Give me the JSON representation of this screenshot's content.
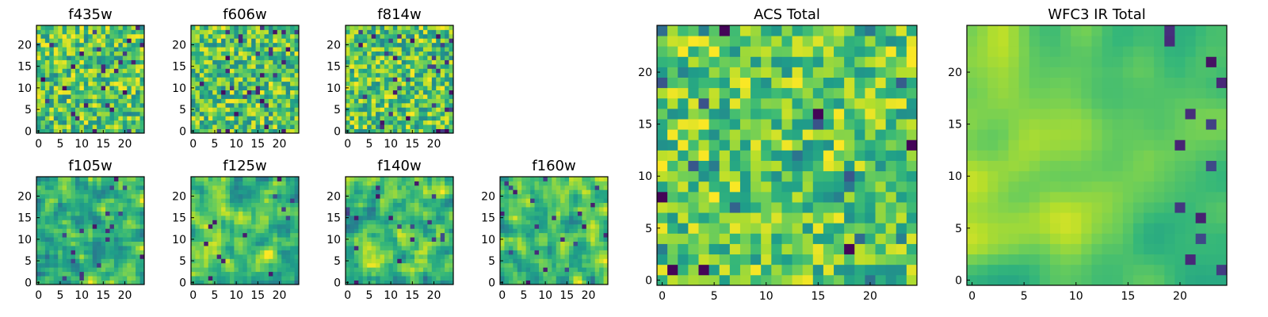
{
  "chart_data": {
    "type": "heatmap",
    "colormap": "viridis",
    "panels": [
      {
        "title": "f435w",
        "xticks": [
          "0",
          "5",
          "10",
          "15",
          "20"
        ],
        "yticks": [
          "0",
          "5",
          "10",
          "15",
          "20"
        ],
        "grid_size": 25,
        "texture": "noise",
        "seed": 11
      },
      {
        "title": "f606w",
        "xticks": [
          "0",
          "5",
          "10",
          "15",
          "20"
        ],
        "yticks": [
          "0",
          "5",
          "10",
          "15",
          "20"
        ],
        "grid_size": 25,
        "texture": "noise",
        "seed": 23
      },
      {
        "title": "f814w",
        "xticks": [
          "0",
          "5",
          "10",
          "15",
          "20"
        ],
        "yticks": [
          "0",
          "5",
          "10",
          "15",
          "20"
        ],
        "grid_size": 25,
        "texture": "noise",
        "seed": 37
      },
      {
        "title": "f105w",
        "xticks": [
          "0",
          "5",
          "10",
          "15",
          "20"
        ],
        "yticks": [
          "0",
          "5",
          "10",
          "15",
          "20"
        ],
        "grid_size": 25,
        "texture": "smooth",
        "seed": 41
      },
      {
        "title": "f125w",
        "xticks": [
          "0",
          "5",
          "10",
          "15",
          "20"
        ],
        "yticks": [
          "0",
          "5",
          "10",
          "15",
          "20"
        ],
        "grid_size": 25,
        "texture": "smooth",
        "seed": 53
      },
      {
        "title": "f140w",
        "xticks": [
          "0",
          "5",
          "10",
          "15",
          "20"
        ],
        "yticks": [
          "0",
          "5",
          "10",
          "15",
          "20"
        ],
        "grid_size": 25,
        "texture": "smooth",
        "seed": 67
      },
      {
        "title": "f160w",
        "xticks": [
          "0",
          "5",
          "10",
          "15",
          "20"
        ],
        "yticks": [
          "0",
          "5",
          "10",
          "15",
          "20"
        ],
        "grid_size": 25,
        "texture": "smooth",
        "seed": 79
      },
      {
        "title": "ACS Total",
        "xticks": [
          "0",
          "5",
          "10",
          "15",
          "20"
        ],
        "yticks": [
          "0",
          "5",
          "10",
          "15",
          "20"
        ],
        "grid_size": 25,
        "texture": "acs",
        "seed": 83
      },
      {
        "title": "WFC3 IR Total",
        "xticks": [
          "0",
          "5",
          "10",
          "15",
          "20"
        ],
        "yticks": [
          "0",
          "5",
          "10",
          "15",
          "20"
        ],
        "grid_size": 25,
        "texture": "ir",
        "seed": 97
      }
    ]
  }
}
